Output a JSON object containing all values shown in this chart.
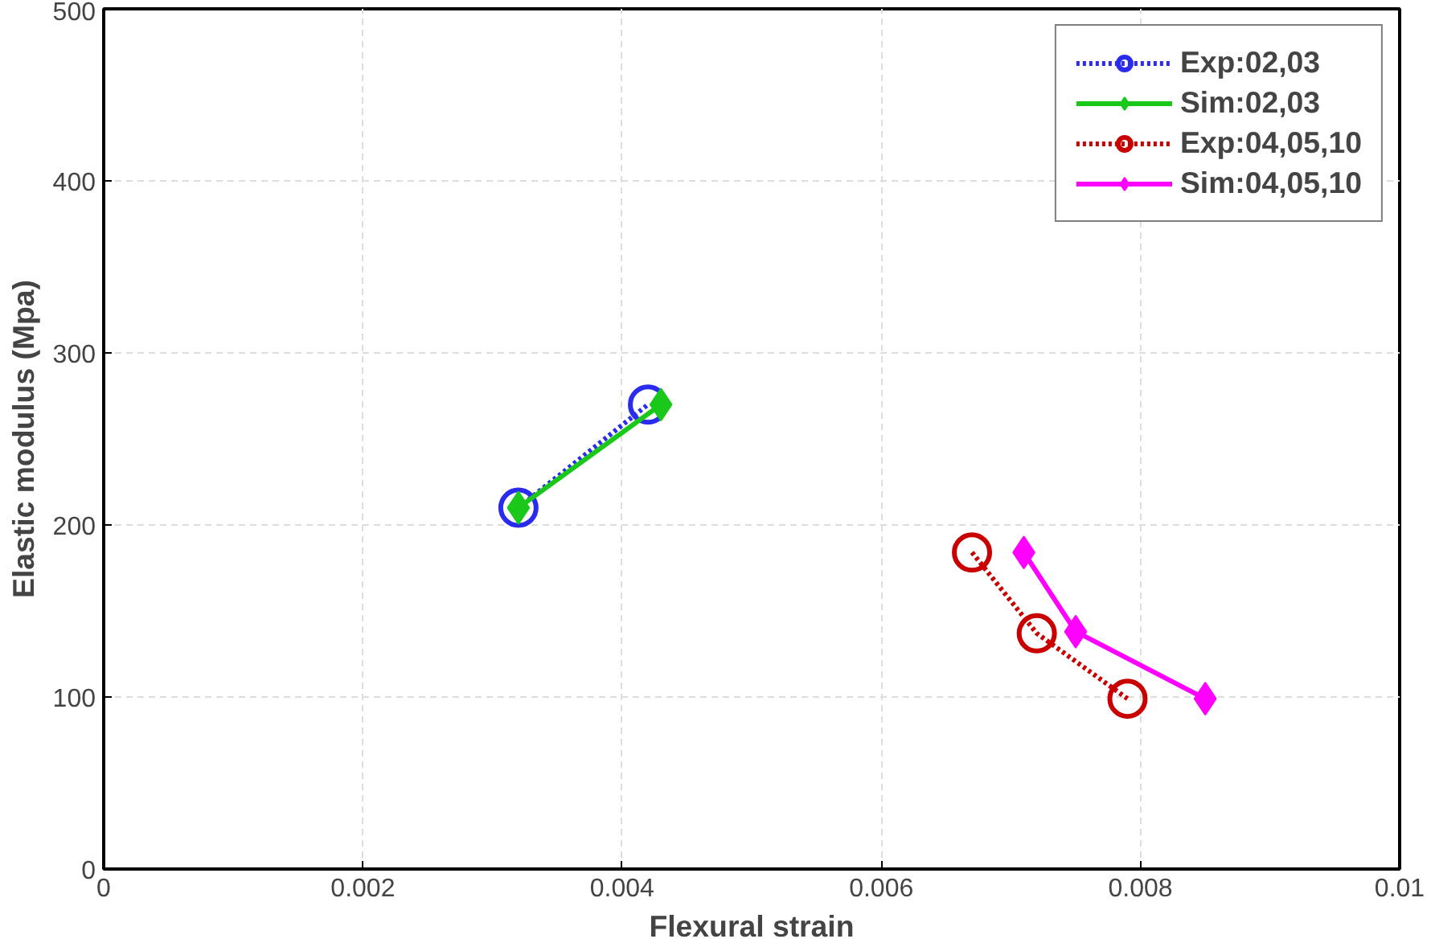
{
  "chart_data": {
    "type": "line",
    "xlabel": "Flexural strain",
    "ylabel": "Elastic modulus (Mpa)",
    "xlim": [
      0,
      0.01
    ],
    "ylim": [
      0,
      500
    ],
    "xticks": [
      0,
      0.002,
      0.004,
      0.006,
      0.008,
      0.01
    ],
    "yticks": [
      0,
      100,
      200,
      300,
      400,
      500
    ],
    "grid": true,
    "legend": "top right",
    "series": [
      {
        "name": "Exp:02,03",
        "color": "#2b2bee",
        "marker": "circle",
        "line_style": "dotted",
        "x": [
          0.0032,
          0.0042
        ],
        "values": [
          210,
          270
        ]
      },
      {
        "name": "Sim:02,03",
        "color": "#19c819",
        "marker": "diamond",
        "line_style": "solid",
        "x": [
          0.0032,
          0.0043
        ],
        "values": [
          210,
          270
        ]
      },
      {
        "name": "Exp:04,05,10",
        "color": "#c80000",
        "marker": "circle",
        "line_style": "dotted",
        "x": [
          0.0067,
          0.0072,
          0.0079
        ],
        "values": [
          184,
          137,
          99
        ]
      },
      {
        "name": "Sim:04,05,10",
        "color": "#ff00ff",
        "marker": "diamond",
        "line_style": "solid",
        "x": [
          0.0071,
          0.0075,
          0.0085
        ],
        "values": [
          184,
          138,
          99
        ]
      }
    ]
  }
}
